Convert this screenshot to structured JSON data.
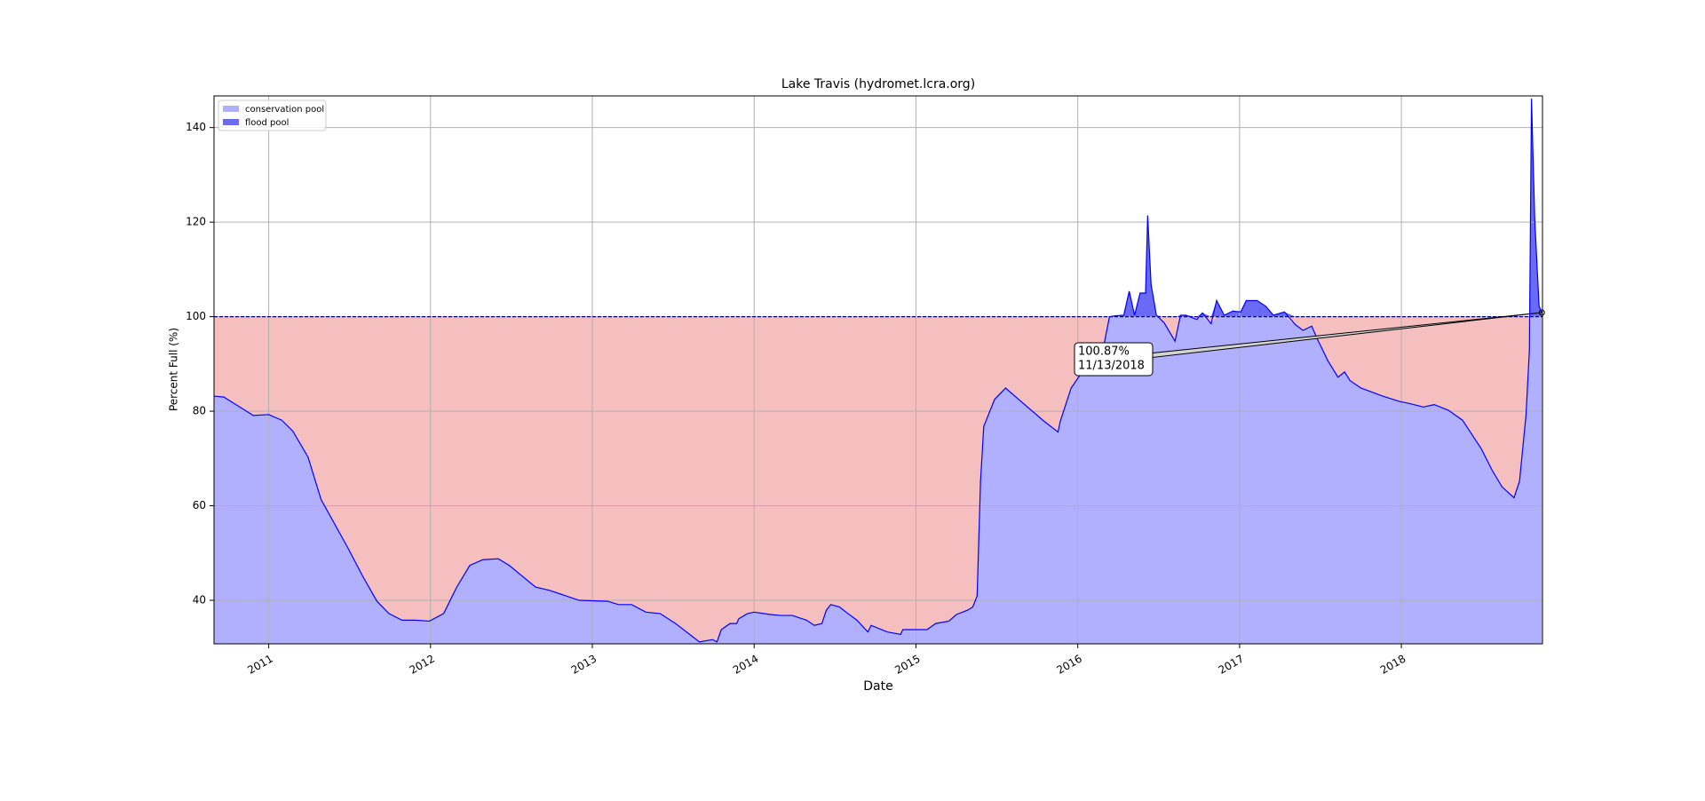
{
  "chart_data": {
    "type": "area",
    "title": "Lake Travis (hydromet.lcra.org)",
    "xlabel": "Date",
    "ylabel": "Percent Full (%)",
    "x": [
      2010.662,
      2010.723,
      2010.905,
      2011.0,
      2011.081,
      2011.149,
      2011.243,
      2011.324,
      2011.486,
      2011.581,
      2011.669,
      2011.743,
      2011.824,
      2011.905,
      2011.993,
      2012.081,
      2012.162,
      2012.243,
      2012.324,
      2012.419,
      2012.486,
      2012.649,
      2012.736,
      2012.919,
      2013.095,
      2013.162,
      2013.243,
      2013.331,
      2013.419,
      2013.514,
      2013.662,
      2013.743,
      2013.77,
      2013.797,
      2013.851,
      2013.892,
      2013.905,
      2013.959,
      2014.0,
      2014.101,
      2014.169,
      2014.236,
      2014.324,
      2014.372,
      2014.419,
      2014.446,
      2014.473,
      2014.527,
      2014.568,
      2014.635,
      2014.703,
      2014.723,
      2014.824,
      2014.905,
      2014.919,
      2015.068,
      2015.122,
      2015.203,
      2015.25,
      2015.318,
      2015.351,
      2015.378,
      2015.399,
      2015.419,
      2015.486,
      2015.554,
      2015.635,
      2015.791,
      2015.878,
      2015.892,
      2015.959,
      2016.027,
      2016.095,
      2016.162,
      2016.196,
      2016.23,
      2016.284,
      2016.318,
      2016.351,
      2016.385,
      2016.419,
      2016.432,
      2016.453,
      2016.486,
      2016.534,
      2016.601,
      2016.635,
      2016.669,
      2016.736,
      2016.77,
      2016.824,
      2016.858,
      2016.905,
      2016.959,
      2017.007,
      2017.041,
      2017.108,
      2017.162,
      2017.209,
      2017.277,
      2017.345,
      2017.392,
      2017.446,
      2017.48,
      2017.547,
      2017.608,
      2017.649,
      2017.682,
      2017.75,
      2017.885,
      2017.986,
      2018.054,
      2018.135,
      2018.203,
      2018.291,
      2018.378,
      2018.493,
      2018.561,
      2018.622,
      2018.696,
      2018.73,
      2018.77,
      2018.791,
      2018.804,
      2018.824,
      2018.851,
      2018.868
    ],
    "values": [
      83.2,
      83.0,
      79.1,
      79.3,
      78.1,
      75.8,
      70.3,
      61.3,
      51.3,
      45.1,
      39.8,
      37.2,
      35.8,
      35.8,
      35.6,
      37.2,
      42.8,
      47.4,
      48.6,
      48.8,
      47.4,
      42.8,
      42.1,
      40.0,
      39.8,
      39.1,
      39.1,
      37.5,
      37.2,
      35.1,
      31.2,
      31.7,
      31.2,
      33.8,
      35.1,
      35.1,
      36.1,
      37.2,
      37.5,
      37.0,
      36.8,
      36.8,
      35.8,
      34.7,
      35.1,
      37.9,
      39.1,
      38.6,
      37.5,
      35.8,
      33.3,
      34.7,
      33.3,
      32.8,
      33.8,
      33.8,
      35.1,
      35.6,
      37.0,
      37.9,
      38.6,
      40.9,
      65.2,
      76.8,
      82.5,
      84.9,
      82.5,
      77.9,
      75.6,
      77.9,
      84.9,
      88.3,
      91.8,
      94.1,
      100.0,
      100.2,
      100.3,
      105.4,
      100.3,
      105.0,
      105.0,
      121.4,
      106.8,
      100.3,
      98.7,
      94.8,
      100.3,
      100.3,
      99.4,
      100.8,
      98.5,
      103.4,
      100.3,
      101.2,
      101.0,
      103.4,
      103.4,
      102.2,
      100.3,
      101.0,
      98.3,
      97.1,
      98.0,
      95.3,
      90.6,
      87.2,
      88.3,
      86.5,
      84.9,
      83.2,
      82.1,
      81.6,
      80.9,
      81.4,
      80.2,
      78.1,
      72.1,
      67.5,
      64.0,
      61.7,
      65.2,
      79.1,
      92.9,
      146.1,
      120.7,
      102.2,
      100.87
    ],
    "full_pool": 100,
    "line_color": "#0000ff",
    "empty_color": "#f5bfc0",
    "full_line_color": "#00008b",
    "legend": [
      {
        "name": "conservation pool",
        "color": "#b0b0ff"
      },
      {
        "name": "flood pool",
        "color": "#6a6af5"
      }
    ],
    "legend_position": "upper left",
    "annotation": {
      "label": "100.87%",
      "date": "11/13/2018"
    },
    "xlim": [
      2010.662,
      2018.872
    ],
    "xticks": [
      2011,
      2012,
      2013,
      2014,
      2015,
      2016,
      2017,
      2018
    ],
    "ylim": [
      30.8,
      146.7
    ],
    "yticks": [
      40,
      60,
      80,
      100,
      120,
      140
    ],
    "grid": true
  }
}
